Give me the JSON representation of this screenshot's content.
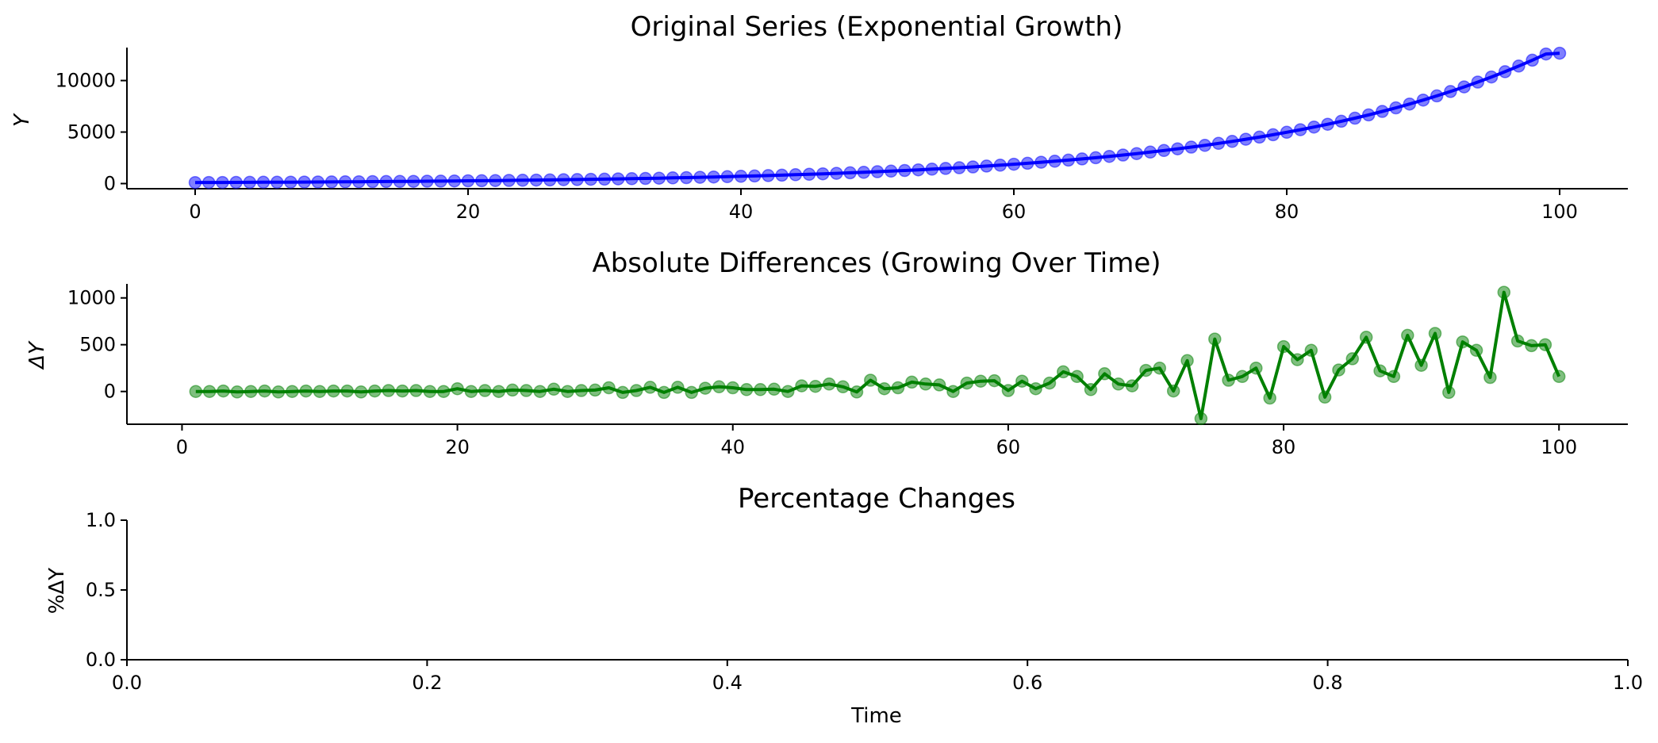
{
  "chart_data": [
    {
      "type": "line",
      "title": "Original Series (Exponential Growth)",
      "xlabel": "",
      "ylabel": "Y",
      "xlim": [
        -5,
        105
      ],
      "ylim": [
        -500,
        13200
      ],
      "xticks": [
        0,
        20,
        40,
        60,
        80,
        100
      ],
      "yticks": [
        0,
        5000,
        10000
      ],
      "color": "#0000ff",
      "series": [
        {
          "name": "Y",
          "x": [
            0,
            1,
            2,
            3,
            4,
            5,
            6,
            7,
            8,
            9,
            10,
            11,
            12,
            13,
            14,
            15,
            16,
            17,
            18,
            19,
            20,
            21,
            22,
            23,
            24,
            25,
            26,
            27,
            28,
            29,
            30,
            31,
            32,
            33,
            34,
            35,
            36,
            37,
            38,
            39,
            40,
            41,
            42,
            43,
            44,
            45,
            46,
            47,
            48,
            49,
            50,
            51,
            52,
            53,
            54,
            55,
            56,
            57,
            58,
            59,
            60,
            61,
            62,
            63,
            64,
            65,
            66,
            67,
            68,
            69,
            70,
            71,
            72,
            73,
            74,
            75,
            76,
            77,
            78,
            79,
            80,
            81,
            82,
            83,
            84,
            85,
            86,
            87,
            88,
            89,
            90,
            91,
            92,
            93,
            94,
            95,
            96,
            97,
            98,
            99,
            100
          ],
          "values": [
            100,
            105,
            110,
            116,
            122,
            128,
            134,
            141,
            148,
            156,
            163,
            171,
            180,
            189,
            199,
            208,
            219,
            230,
            241,
            253,
            266,
            280,
            293,
            308,
            324,
            340,
            357,
            375,
            394,
            413,
            434,
            456,
            478,
            502,
            527,
            554,
            581,
            610,
            641,
            673,
            707,
            742,
            779,
            818,
            859,
            902,
            947,
            994,
            1044,
            1096,
            1151,
            1209,
            1269,
            1333,
            1399,
            1469,
            1543,
            1620,
            1701,
            1786,
            1875,
            1969,
            2068,
            2171,
            2280,
            2394,
            2513,
            2639,
            2771,
            2910,
            3055,
            3208,
            3368,
            3537,
            3713,
            3899,
            4094,
            4299,
            4514,
            4740,
            4977,
            5225,
            5487,
            5761,
            6049,
            6352,
            6669,
            7003,
            7353,
            7721,
            8107,
            8512,
            8938,
            9385,
            9854,
            10347,
            10864,
            11408,
            11978,
            12577,
            12650
          ]
        }
      ]
    },
    {
      "type": "line",
      "title": "Absolute Differences (Growing Over Time)",
      "xlabel": "",
      "ylabel": "ΔY",
      "xlim": [
        -4,
        105
      ],
      "ylim": [
        -350,
        1150
      ],
      "xticks": [
        0,
        20,
        40,
        60,
        80,
        100
      ],
      "yticks": [
        0,
        500,
        1000
      ],
      "color": "#008000",
      "series": [
        {
          "name": "ΔY",
          "x": [
            1,
            2,
            3,
            4,
            5,
            6,
            7,
            8,
            9,
            10,
            11,
            12,
            13,
            14,
            15,
            16,
            17,
            18,
            19,
            20,
            21,
            22,
            23,
            24,
            25,
            26,
            27,
            28,
            29,
            30,
            31,
            32,
            33,
            34,
            35,
            36,
            37,
            38,
            39,
            40,
            41,
            42,
            43,
            44,
            45,
            46,
            47,
            48,
            49,
            50,
            51,
            52,
            53,
            54,
            55,
            56,
            57,
            58,
            59,
            60,
            61,
            62,
            63,
            64,
            65,
            66,
            67,
            68,
            69,
            70,
            71,
            72,
            73,
            74,
            75,
            76,
            77,
            78,
            79,
            80,
            81,
            82,
            83,
            84,
            85,
            86,
            87,
            88,
            89,
            90,
            91,
            92,
            93,
            94,
            95,
            96,
            97,
            98,
            99,
            100
          ],
          "values": [
            0,
            0,
            5,
            -5,
            0,
            5,
            -5,
            0,
            5,
            0,
            5,
            5,
            -5,
            5,
            10,
            5,
            10,
            0,
            0,
            30,
            0,
            10,
            0,
            15,
            10,
            0,
            25,
            0,
            10,
            15,
            40,
            -10,
            10,
            45,
            -10,
            45,
            -10,
            35,
            50,
            40,
            20,
            20,
            25,
            0,
            60,
            55,
            80,
            50,
            -5,
            120,
            30,
            40,
            100,
            80,
            70,
            0,
            90,
            110,
            115,
            10,
            110,
            30,
            90,
            210,
            160,
            20,
            190,
            80,
            60,
            225,
            250,
            5,
            330,
            -290,
            560,
            120,
            160,
            250,
            -70,
            480,
            340,
            440,
            -60,
            230,
            350,
            580,
            220,
            160,
            600,
            280,
            620,
            -10,
            530,
            440,
            150,
            1060,
            540,
            490,
            500,
            160
          ]
        }
      ]
    },
    {
      "type": "line",
      "title": "Percentage Changes",
      "xlabel": "Time",
      "ylabel": "%ΔY",
      "xlim": [
        0,
        1
      ],
      "ylim": [
        0,
        1
      ],
      "xticks": [
        "0.0",
        "0.2",
        "0.4",
        "0.6",
        "0.8",
        "1.0"
      ],
      "yticks": [
        "0.0",
        "0.5",
        "1.0"
      ],
      "series": []
    }
  ]
}
